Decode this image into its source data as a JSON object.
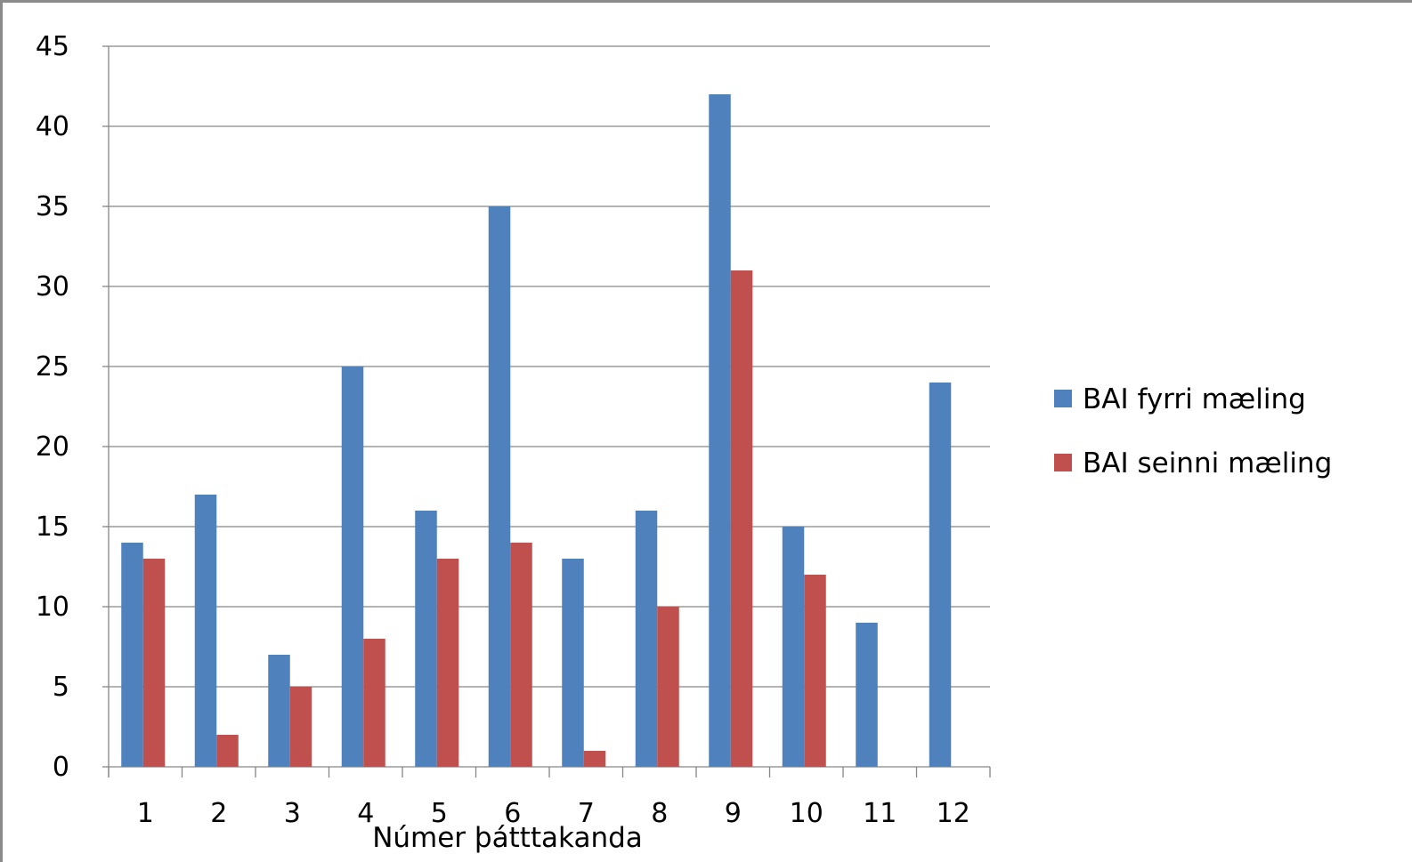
{
  "chart_data": {
    "type": "bar",
    "title": "",
    "xlabel": "Númer þátttakanda",
    "ylabel": "",
    "categories": [
      "1",
      "2",
      "3",
      "4",
      "5",
      "6",
      "7",
      "8",
      "9",
      "10",
      "11",
      "12"
    ],
    "series": [
      {
        "name": "BAI fyrri mæling",
        "color": "#4F81BD",
        "values": [
          14,
          17,
          7,
          25,
          16,
          35,
          13,
          16,
          42,
          15,
          9,
          24
        ]
      },
      {
        "name": "BAI seinni mæling",
        "color": "#C0504D",
        "values": [
          13,
          2,
          5,
          8,
          13,
          14,
          1,
          10,
          31,
          12,
          null,
          null
        ]
      }
    ],
    "ylim": [
      0,
      45
    ],
    "yticks": [
      0,
      5,
      10,
      15,
      20,
      25,
      30,
      35,
      40,
      45
    ],
    "grid": true,
    "legend": "right"
  }
}
